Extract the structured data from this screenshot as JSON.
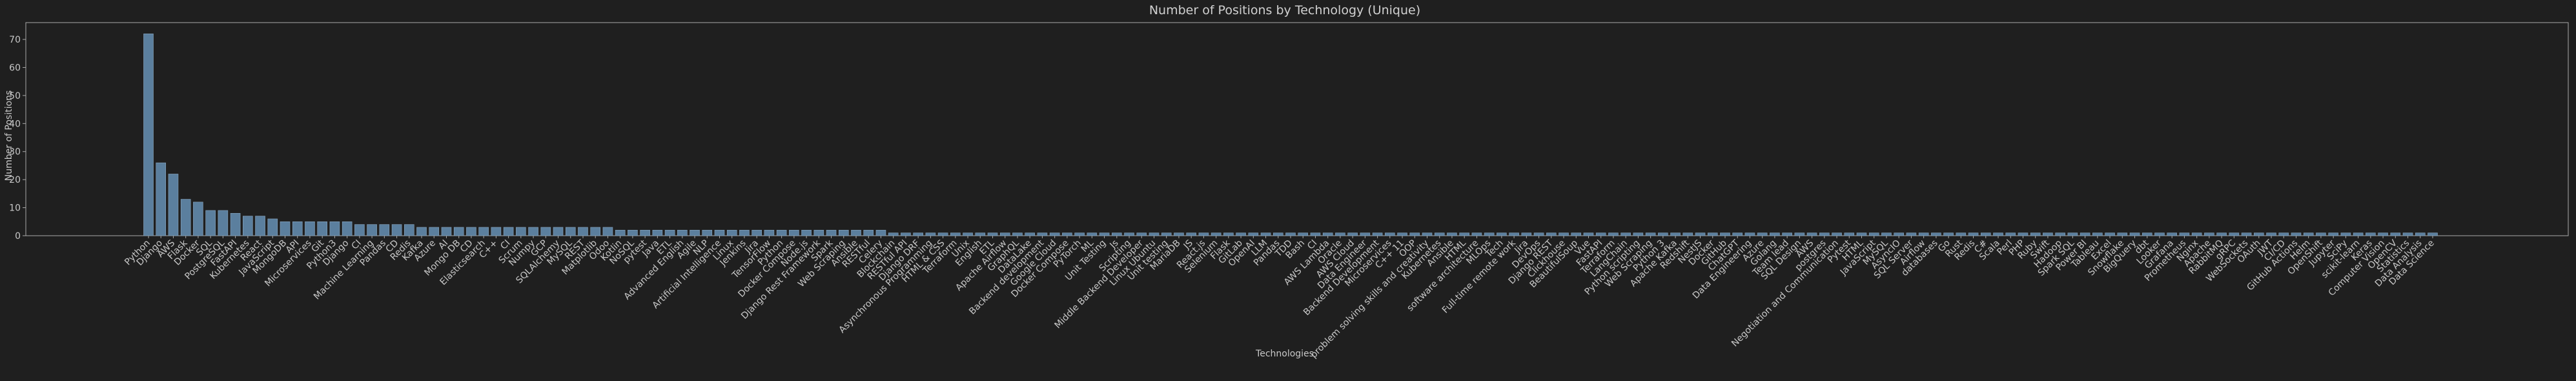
{
  "chart_data": {
    "type": "bar",
    "title": "Number of Positions by Technology (Unique)",
    "xlabel": "Technologies",
    "ylabel": "Number of Positions",
    "ylim": [
      0,
      76
    ],
    "yticks": [
      0,
      10,
      20,
      30,
      40,
      50,
      60,
      70
    ],
    "grid": false,
    "colors": {
      "background": "#1f1f1f",
      "bar": "#5b7f9e",
      "bar_edge": "#8aa7c0",
      "text": "#c8c8c8",
      "axis": "#aaaaaa"
    },
    "categories": [
      "Python",
      "Django",
      "AWS",
      "Flask",
      "Docker",
      "SQL",
      "PostgreSQL",
      "FastAPI",
      "Kubernetes",
      "React",
      "JavaScript",
      "MongoDB",
      "API",
      "Microservices",
      "Git",
      "Python3",
      "Django",
      "CI",
      "Machine Learning",
      "Pandas",
      "CD",
      "Redis",
      "Kafka",
      "Azure",
      "AI",
      "Mongo DB",
      "CD",
      "Elasticsearch",
      "C++",
      "CI",
      "Scrum",
      "Numpy",
      "GCP",
      "SQLAlchemy",
      "MySQL",
      "REST",
      "Matplotlib",
      "Odoo",
      "Kotlin",
      "NoSQL",
      "pytest",
      "Java",
      "ETL",
      "Advanced English",
      "Agile",
      "NLP",
      "Artificial Intelligence",
      "Linux",
      "Jenkins",
      "Jira",
      "TensorFlow",
      "Python",
      "Docker Compose",
      "Node.js",
      "Django Rest Framework",
      "Spark",
      "Web Scraping",
      "Ansible",
      "RESTful",
      "Celery",
      "Blockchain",
      "RESTful API",
      "Django DRF",
      "Asynchronous Programming",
      "HTML & CSS",
      "Terraform",
      "Unix",
      "English",
      "ETL",
      "Apache Airflow",
      "GraphQL",
      "DataLake",
      "Backend development",
      "Google Cloud",
      "Docker Compose",
      "PyTorch",
      "ML",
      "Unit Testing",
      "Js",
      "Scripting",
      "Middle Backend Developer",
      "Linux Ubuntu",
      "Unit testing",
      "MariaDB",
      "JS",
      "React.js",
      "Selenium",
      "Flask",
      "GitLab",
      "OpenAI",
      "LLM",
      "Pandas",
      "TDD",
      "Bash",
      "CI",
      "AWS Lambda",
      "Oracle",
      "AWS Cloud",
      "Data Engineer",
      "Backend Development",
      "Microservices",
      "C++ 11",
      "OOP",
      "problem solving skills and creativity",
      "Kubernetes",
      "Ansible",
      "HTML",
      "software architecture",
      "MLOps",
      "Tech",
      "Full-time remote work",
      "Jira",
      "DevOps",
      "Django REST",
      "Clickhouse",
      "BeautifulSoup",
      "Vue",
      "FastAPI",
      "Terraform",
      "LangChain",
      "Python scripting",
      "Web Scraping",
      "Python 3",
      "Apache Kafka",
      "Redshift",
      "NestJS",
      "Docker",
      "GitHub",
      "ChatGPT",
      "Data Engineering",
      "Azure",
      "Golang",
      "Team lead",
      "SQL Design",
      "AWS",
      "postgres",
      "Negotiation and Communication",
      "Pytest",
      "HTML",
      "JavaScript",
      "MySQL",
      "AsyncIO",
      "SQL Server",
      "Airflow",
      "databases",
      "Go",
      "Rust",
      "Redis",
      "C#",
      "Scala",
      "Perl",
      "PHP",
      "Ruby",
      "Swift",
      "Hadoop",
      "Spark SQL",
      "Power BI",
      "Tableau",
      "Excel",
      "Snowflake",
      "BigQuery",
      "dbt",
      "Looker",
      "Grafana",
      "Prometheus",
      "Nginx",
      "Apache",
      "RabbitMQ",
      "gRPC",
      "WebSockets",
      "OAuth",
      "JWT",
      "CI/CD",
      "GitHub Actions",
      "Helm",
      "OpenShift",
      "Jupyter",
      "SciPy",
      "scikit-learn",
      "Keras",
      "Computer Vision",
      "OpenCV",
      "Statistics",
      "Data Analysis",
      "Data Science"
    ],
    "values": [
      72,
      26,
      22,
      13,
      12,
      9,
      9,
      8,
      7,
      7,
      6,
      5,
      5,
      5,
      5,
      5,
      5,
      4,
      4,
      4,
      4,
      4,
      3,
      3,
      3,
      3,
      3,
      3,
      3,
      3,
      3,
      3,
      3,
      3,
      3,
      3,
      3,
      3,
      2,
      2,
      2,
      2,
      2,
      2,
      2,
      2,
      2,
      2,
      2,
      2,
      2,
      2,
      2,
      2,
      2,
      2,
      2,
      2,
      2,
      2,
      1,
      1,
      1,
      1,
      1,
      1,
      1,
      1,
      1,
      1,
      1,
      1,
      1,
      1,
      1,
      1,
      1,
      1,
      1,
      1,
      1,
      1,
      1,
      1,
      1,
      1,
      1,
      1,
      1,
      1,
      1,
      1,
      1,
      1,
      1,
      1,
      1,
      1,
      1,
      1,
      1,
      1,
      1,
      1,
      1,
      1,
      1,
      1,
      1,
      1,
      1,
      1,
      1,
      1,
      1,
      1,
      1,
      1,
      1,
      1,
      1,
      1,
      1,
      1,
      1,
      1,
      1,
      1,
      1,
      1,
      1,
      1,
      1,
      1,
      1,
      1,
      1,
      1,
      1,
      1,
      1,
      1,
      1,
      1,
      1,
      1,
      1,
      1,
      1,
      1,
      1,
      1,
      1,
      1,
      1,
      1,
      1,
      1,
      1,
      1,
      1,
      1,
      1,
      1,
      1,
      1,
      1,
      1,
      1,
      1,
      1,
      1,
      1,
      1,
      1,
      1,
      1,
      1,
      1,
      1,
      1,
      1,
      1,
      1,
      1
    ]
  }
}
